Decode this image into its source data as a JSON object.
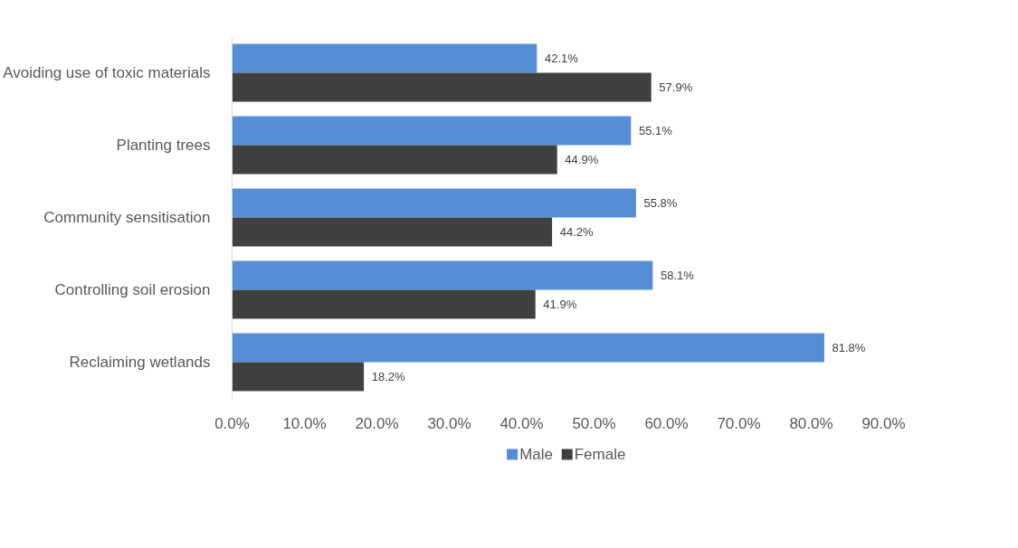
{
  "chart_data": {
    "type": "bar",
    "orientation": "horizontal",
    "categories": [
      "Avoiding use of toxic materials",
      "Planting trees",
      "Community sensitisation",
      "Controlling soil erosion",
      "Reclaiming wetlands"
    ],
    "series": [
      {
        "name": "Male",
        "color": "#558ed5",
        "values": [
          42.1,
          55.1,
          55.8,
          58.1,
          81.8
        ],
        "value_labels": [
          "42.1%",
          "55.1%",
          "55.8%",
          "58.1%",
          "81.8%"
        ]
      },
      {
        "name": "Female",
        "color": "#404040",
        "values": [
          57.9,
          44.9,
          44.2,
          41.9,
          18.2
        ],
        "value_labels": [
          "57.9%",
          "44.9%",
          "44.2%",
          "41.9%",
          "18.2%"
        ]
      }
    ],
    "xlim": [
      0,
      90
    ],
    "xticks": [
      {
        "value": 0,
        "label": "0.0%"
      },
      {
        "value": 10,
        "label": "10.0%"
      },
      {
        "value": 20,
        "label": "20.0%"
      },
      {
        "value": 30,
        "label": "30.0%"
      },
      {
        "value": 40,
        "label": "40.0%"
      },
      {
        "value": 50,
        "label": "50.0%"
      },
      {
        "value": 60,
        "label": "60.0%"
      },
      {
        "value": 70,
        "label": "70.0%"
      },
      {
        "value": 80,
        "label": "80.0%"
      },
      {
        "value": 90,
        "label": "90.0%"
      }
    ],
    "grid": false,
    "legend": "bottom"
  }
}
